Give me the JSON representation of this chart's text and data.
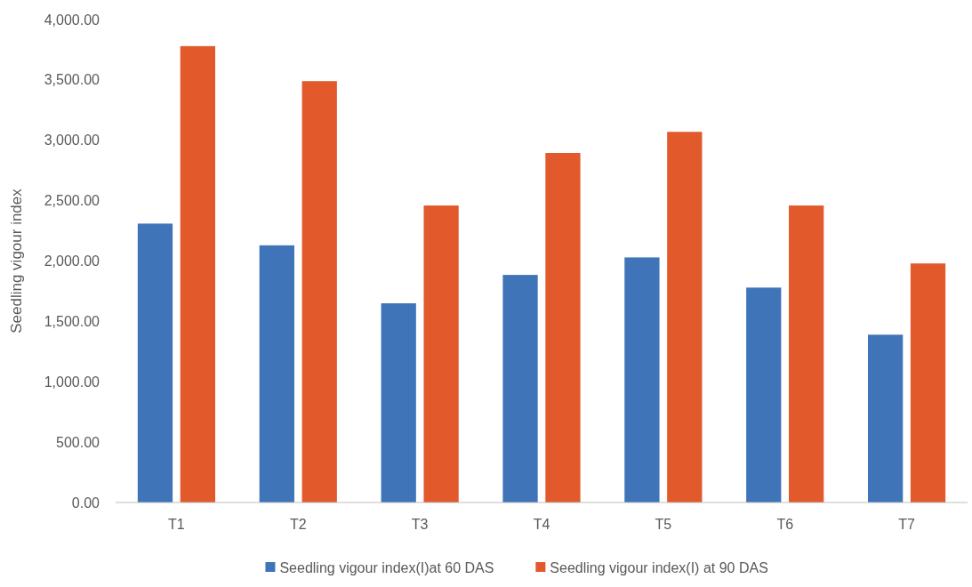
{
  "chart_data": {
    "type": "bar",
    "ylabel": "Seedling vigour index",
    "categories": [
      "T1",
      "T2",
      "T3",
      "T4",
      "T5",
      "T6",
      "T7"
    ],
    "series": [
      {
        "name": "Seedling vigour index(I)at 60 DAS",
        "color": "#4074b8",
        "values": [
          2310,
          2130,
          1650,
          1885,
          2030,
          1780,
          1390
        ]
      },
      {
        "name": "Seedling vigour index(I) at 90 DAS",
        "color": "#e2592c",
        "values": [
          3780,
          3490,
          2460,
          2895,
          3070,
          2460,
          1980
        ]
      }
    ],
    "ylim": [
      0,
      4000
    ],
    "yticks": [
      {
        "value": 0,
        "label": "0.00"
      },
      {
        "value": 500,
        "label": "500.00"
      },
      {
        "value": 1000,
        "label": "1,000.00"
      },
      {
        "value": 1500,
        "label": "1,500.00"
      },
      {
        "value": 2000,
        "label": "2,000.00"
      },
      {
        "value": 2500,
        "label": "2,500.00"
      },
      {
        "value": 3000,
        "label": "3,000.00"
      },
      {
        "value": 3500,
        "label": "3,500.00"
      },
      {
        "value": 4000,
        "label": "4,000.00"
      }
    ],
    "grid": false,
    "legend": "bottom"
  }
}
